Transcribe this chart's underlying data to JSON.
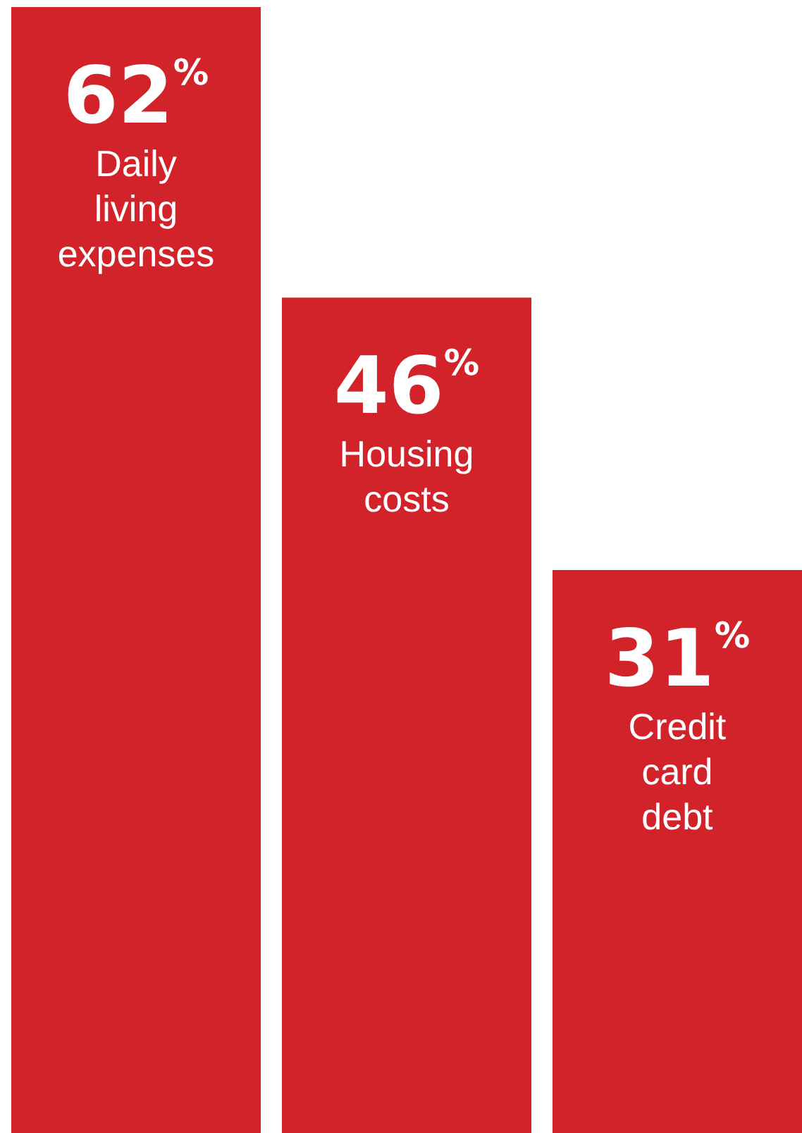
{
  "chart_data": {
    "type": "bar",
    "categories": [
      "Daily living expenses",
      "Housing costs",
      "Credit card debt"
    ],
    "values": [
      62,
      46,
      31
    ],
    "color": "#d2232a",
    "value_labels": [
      "62$^{%}$",
      "46$^{%}$",
      "31$^{%}$"
    ]
  }
}
